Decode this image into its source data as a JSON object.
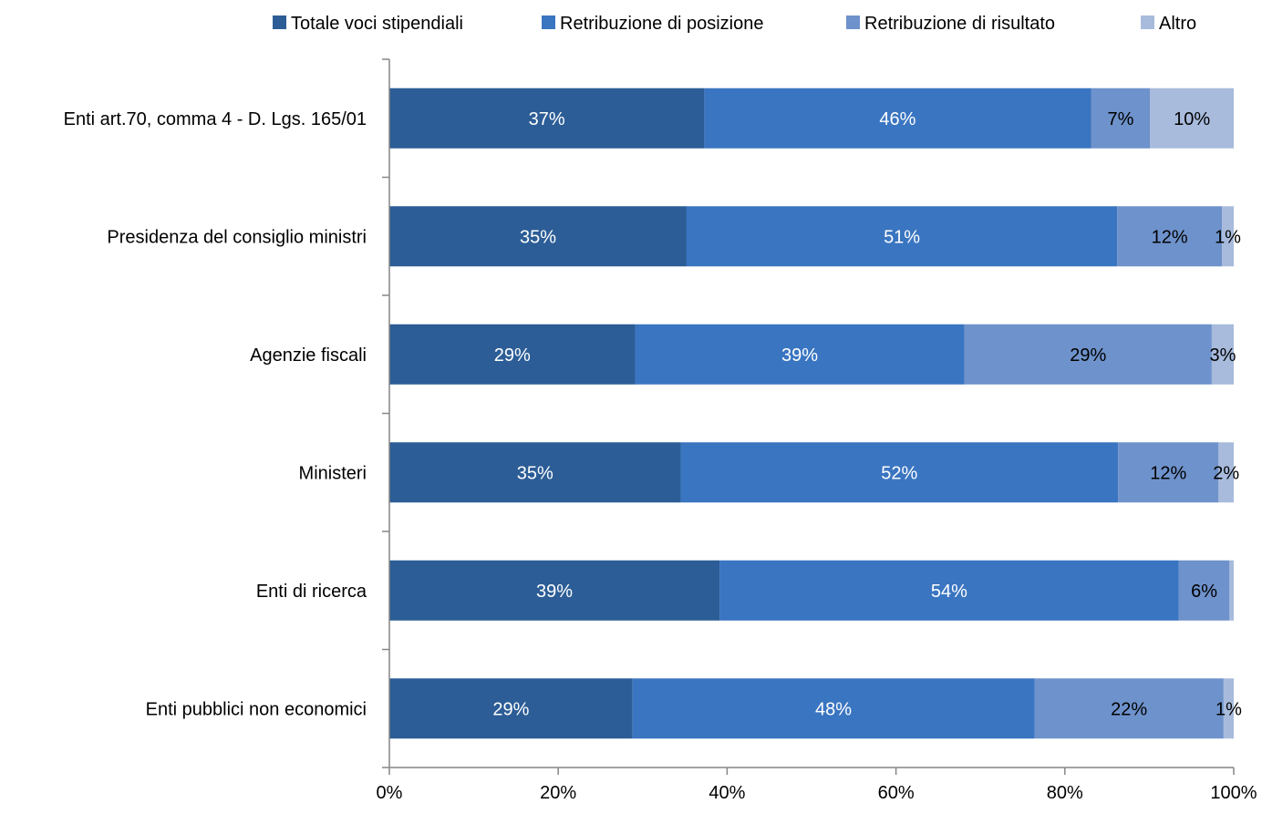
{
  "chart_data": {
    "type": "bar",
    "orientation": "horizontal",
    "stacked": "percent",
    "categories": [
      "Enti art.70, comma 4 - D. Lgs. 165/01",
      "Presidenza del consiglio ministri",
      "Agenzie fiscali",
      "Ministeri",
      "Enti di ricerca",
      "Enti pubblici non economici"
    ],
    "series": [
      {
        "name": "Totale voci stipendiali",
        "color": "#2c5d96",
        "values": [
          0.373,
          0.352,
          0.291,
          0.345,
          0.391,
          0.288
        ],
        "labels": [
          "37%",
          "35%",
          "29%",
          "35%",
          "39%",
          "29%"
        ],
        "label_color": "#ffffff"
      },
      {
        "name": "Retribuzione di posizione",
        "color": "#3a75c1",
        "values": [
          0.458,
          0.51,
          0.39,
          0.518,
          0.544,
          0.476
        ],
        "labels": [
          "46%",
          "51%",
          "39%",
          "52%",
          "54%",
          "48%"
        ],
        "label_color": "#ffffff"
      },
      {
        "name": "Retribuzione di risultato",
        "color": "#6e92cb",
        "values": [
          0.07,
          0.124,
          0.293,
          0.119,
          0.06,
          0.224
        ],
        "labels": [
          "7%",
          "12%",
          "29%",
          "12%",
          "6%",
          "22%"
        ],
        "label_color": "#000000"
      },
      {
        "name": "Altro",
        "color": "#a8bbdc",
        "values": [
          0.099,
          0.014,
          0.026,
          0.018,
          0.005,
          0.012
        ],
        "labels": [
          "10%",
          "1%",
          "3%",
          "2%",
          "",
          "1%"
        ],
        "label_color": "#000000"
      }
    ],
    "xlim": [
      0,
      1
    ],
    "x_ticks": [
      "0%",
      "20%",
      "40%",
      "60%",
      "80%",
      "100%"
    ],
    "grid": false,
    "legend_position": "top"
  }
}
